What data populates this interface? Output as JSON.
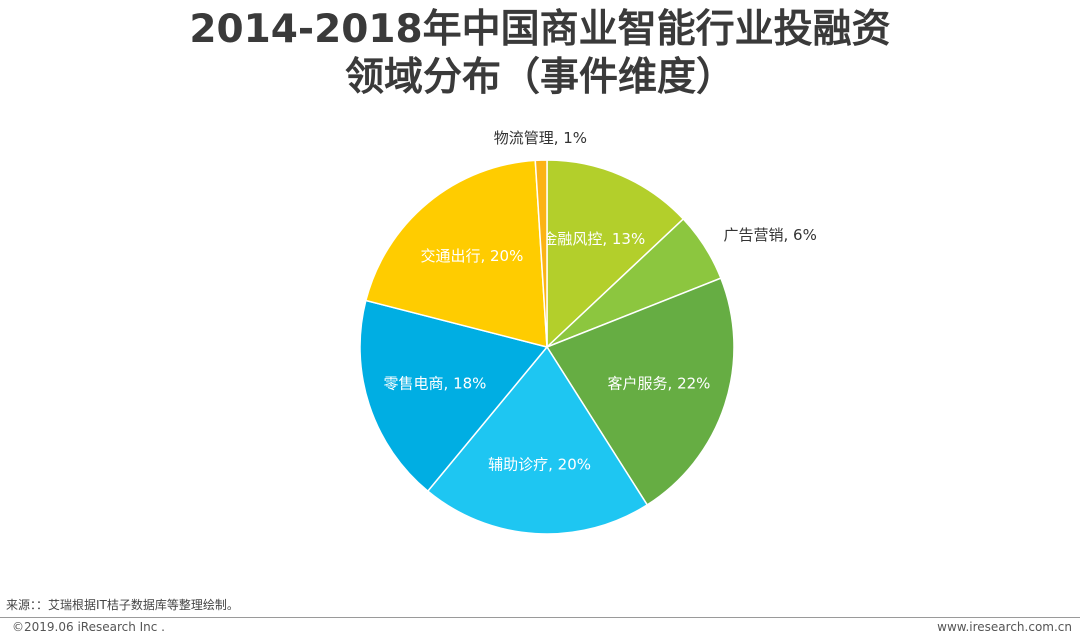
{
  "header": {
    "title_line1": "2014-2018年中国商业智能行业投融资",
    "title_line2": "领域分布（事件维度）"
  },
  "footer": {
    "source": "来源：：艾瑞根据IT桔子数据库等整理绘制。",
    "copyright": "©2019.06 iResearch Inc .",
    "website": "www.iresearch.com.cn"
  },
  "chart_data": {
    "type": "pie",
    "title": "2014-2018年中国商业智能行业投融资领域分布（事件维度）",
    "unit": "%",
    "start_angle_deg": -90,
    "direction": "clockwise",
    "slices": [
      {
        "label": "金融风控",
        "value": 13,
        "display": "金融风控, 13%",
        "color": "#b3cf2b",
        "label_position": "inside",
        "label_color": "#ffffff"
      },
      {
        "label": "广告营销",
        "value": 6,
        "display": "广告营销, 6%",
        "color": "#8cc63f",
        "label_position": "outside",
        "label_color": "#333333"
      },
      {
        "label": "客户服务",
        "value": 22,
        "display": "客户服务, 22%",
        "color": "#66ad43",
        "label_position": "inside",
        "label_color": "#ffffff"
      },
      {
        "label": "辅助诊疗",
        "value": 20,
        "display": "辅助诊疗, 20%",
        "color": "#1ec6f2",
        "label_position": "inside",
        "label_color": "#ffffff"
      },
      {
        "label": "零售电商",
        "value": 18,
        "display": "零售电商, 18%",
        "color": "#00aee3",
        "label_position": "inside",
        "label_color": "#ffffff"
      },
      {
        "label": "交通出行",
        "value": 20,
        "display": "交通出行, 20%",
        "color": "#ffcc00",
        "label_position": "inside",
        "label_color": "#ffffff"
      },
      {
        "label": "物流管理",
        "value": 1,
        "display": "物流管理, 1%",
        "color": "#fbb315",
        "label_position": "outside",
        "label_color": "#333333"
      }
    ]
  }
}
